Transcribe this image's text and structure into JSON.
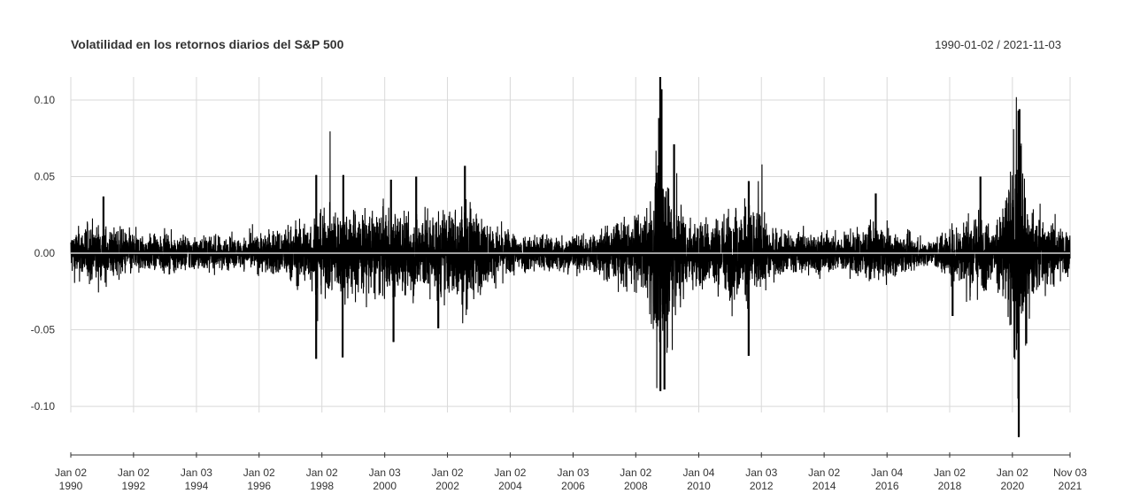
{
  "chart_data": {
    "type": "line",
    "title": "Volatilidad en los retornos diarios del S&P 500",
    "date_range": "1990-01-02 / 2021-11-03",
    "x_start": "1990-01-02",
    "x_end": "2021-11-03",
    "ylim": [
      -0.13,
      0.115
    ],
    "grid": true,
    "y_ticks": [
      "0.10",
      "0.05",
      "0.00",
      "-0.05",
      "-0.10"
    ],
    "y_tick_values": [
      0.1,
      0.05,
      0.0,
      -0.05,
      -0.1
    ],
    "x_ticks": [
      {
        "date": "1990-01-02",
        "line1": "Jan 02",
        "line2": "1990"
      },
      {
        "date": "1992-01-02",
        "line1": "Jan 02",
        "line2": "1992"
      },
      {
        "date": "1994-01-03",
        "line1": "Jan 03",
        "line2": "1994"
      },
      {
        "date": "1996-01-02",
        "line1": "Jan 02",
        "line2": "1996"
      },
      {
        "date": "1998-01-02",
        "line1": "Jan 02",
        "line2": "1998"
      },
      {
        "date": "2000-01-03",
        "line1": "Jan 03",
        "line2": "2000"
      },
      {
        "date": "2002-01-02",
        "line1": "Jan 02",
        "line2": "2002"
      },
      {
        "date": "2004-01-02",
        "line1": "Jan 02",
        "line2": "2004"
      },
      {
        "date": "2006-01-03",
        "line1": "Jan 03",
        "line2": "2006"
      },
      {
        "date": "2008-01-02",
        "line1": "Jan 02",
        "line2": "2008"
      },
      {
        "date": "2010-01-04",
        "line1": "Jan 04",
        "line2": "2010"
      },
      {
        "date": "2012-01-03",
        "line1": "Jan 03",
        "line2": "2012"
      },
      {
        "date": "2014-01-02",
        "line1": "Jan 02",
        "line2": "2014"
      },
      {
        "date": "2016-01-04",
        "line1": "Jan 04",
        "line2": "2016"
      },
      {
        "date": "2018-01-02",
        "line1": "Jan 02",
        "line2": "2018"
      },
      {
        "date": "2020-01-02",
        "line1": "Jan 02",
        "line2": "2020"
      },
      {
        "date": "2021-11-03",
        "line1": "Nov 03",
        "line2": "2021"
      }
    ],
    "volatility_profile": [
      {
        "date": "1990-01-02",
        "level": 0.0075
      },
      {
        "date": "1990-09-01",
        "level": 0.01
      },
      {
        "date": "1991-06-01",
        "level": 0.0085
      },
      {
        "date": "1992-06-01",
        "level": 0.006
      },
      {
        "date": "1994-01-01",
        "level": 0.006
      },
      {
        "date": "1995-06-01",
        "level": 0.005
      },
      {
        "date": "1996-06-01",
        "level": 0.0075
      },
      {
        "date": "1997-06-01",
        "level": 0.011
      },
      {
        "date": "1998-09-01",
        "level": 0.015
      },
      {
        "date": "2000-06-01",
        "level": 0.014
      },
      {
        "date": "2001-09-01",
        "level": 0.014
      },
      {
        "date": "2002-08-01",
        "level": 0.017
      },
      {
        "date": "2003-06-01",
        "level": 0.009
      },
      {
        "date": "2004-06-01",
        "level": 0.0065
      },
      {
        "date": "2006-06-01",
        "level": 0.006
      },
      {
        "date": "2007-08-01",
        "level": 0.011
      },
      {
        "date": "2008-05-01",
        "level": 0.013
      },
      {
        "date": "2008-10-15",
        "level": 0.038
      },
      {
        "date": "2009-03-01",
        "level": 0.025
      },
      {
        "date": "2009-09-01",
        "level": 0.011
      },
      {
        "date": "2010-06-01",
        "level": 0.012
      },
      {
        "date": "2011-09-01",
        "level": 0.017
      },
      {
        "date": "2012-06-01",
        "level": 0.0075
      },
      {
        "date": "2014-06-01",
        "level": 0.0065
      },
      {
        "date": "2015-09-01",
        "level": 0.009
      },
      {
        "date": "2017-06-01",
        "level": 0.004
      },
      {
        "date": "2018-03-01",
        "level": 0.01
      },
      {
        "date": "2018-12-20",
        "level": 0.015
      },
      {
        "date": "2019-06-01",
        "level": 0.0075
      },
      {
        "date": "2020-03-16",
        "level": 0.04
      },
      {
        "date": "2020-07-01",
        "level": 0.014
      },
      {
        "date": "2021-11-03",
        "level": 0.008
      }
    ],
    "notable_returns": [
      {
        "date": "1991-01-17",
        "value": 0.037
      },
      {
        "date": "1997-10-27",
        "value": -0.069
      },
      {
        "date": "1997-10-28",
        "value": 0.051
      },
      {
        "date": "1998-08-31",
        "value": -0.068
      },
      {
        "date": "1998-09-08",
        "value": 0.051
      },
      {
        "date": "2000-04-14",
        "value": -0.058
      },
      {
        "date": "2000-03-16",
        "value": 0.048
      },
      {
        "date": "2001-01-03",
        "value": 0.05
      },
      {
        "date": "2002-07-24",
        "value": 0.057
      },
      {
        "date": "2001-09-17",
        "value": -0.049
      },
      {
        "date": "2008-10-13",
        "value": 0.115
      },
      {
        "date": "2008-10-28",
        "value": 0.107
      },
      {
        "date": "2008-10-15",
        "value": -0.09
      },
      {
        "date": "2008-12-01",
        "value": -0.089
      },
      {
        "date": "2009-03-23",
        "value": 0.071
      },
      {
        "date": "2011-08-08",
        "value": -0.067
      },
      {
        "date": "2011-08-09",
        "value": 0.047
      },
      {
        "date": "2015-08-26",
        "value": 0.039
      },
      {
        "date": "2018-02-05",
        "value": -0.041
      },
      {
        "date": "2018-12-26",
        "value": 0.05
      },
      {
        "date": "2020-03-16",
        "value": -0.12
      },
      {
        "date": "2020-03-24",
        "value": 0.094
      },
      {
        "date": "2020-03-13",
        "value": 0.093
      },
      {
        "date": "2020-03-12",
        "value": -0.095
      },
      {
        "date": "2020-04-06",
        "value": 0.07
      },
      {
        "date": "2020-06-11",
        "value": -0.059
      }
    ],
    "colors": {
      "line": "#000000",
      "zero_line": "#ffffff",
      "grid": "#d9d9d9",
      "axis": "#333333"
    }
  }
}
